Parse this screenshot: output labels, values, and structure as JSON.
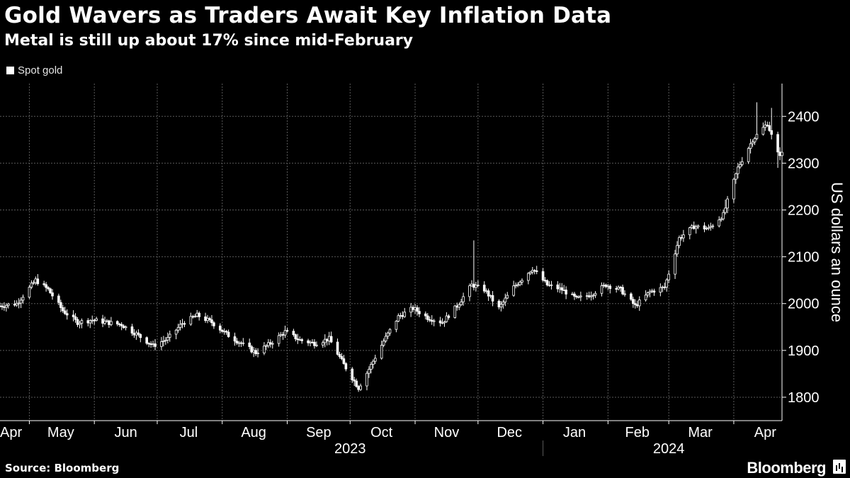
{
  "header": {
    "title": "Gold Wavers as Traders Await Key Inflation Data",
    "subtitle": "Metal is still up about 17% since mid-February"
  },
  "footer": {
    "source": "Source: Bloomberg",
    "brand": "Bloomberg"
  },
  "colors": {
    "background": "#000000",
    "series": "#ffffff",
    "grid": "#5a5a5a"
  },
  "chart_data": {
    "type": "candlestick",
    "title": "Gold Wavers as Traders Await Key Inflation Data",
    "subtitle": "Metal is still up about 17% since mid-February",
    "xlabel": "",
    "ylabel": "US dollars an ounce",
    "ylim": [
      1750,
      2470
    ],
    "xlim": [
      "2023-04-17",
      "2024-04-24"
    ],
    "y_ticks": [
      1800,
      1900,
      2000,
      2100,
      2200,
      2300,
      2400
    ],
    "x_ticks": [
      {
        "label": "Apr",
        "date": "2023-04-20"
      },
      {
        "label": "May",
        "date": "2023-05-16"
      },
      {
        "label": "Jun",
        "date": "2023-06-16"
      },
      {
        "label": "Jul",
        "date": "2023-07-16"
      },
      {
        "label": "Aug",
        "date": "2023-08-16"
      },
      {
        "label": "Sep",
        "date": "2023-09-16"
      },
      {
        "label": "Oct",
        "date": "2023-10-16"
      },
      {
        "label": "Nov",
        "date": "2023-11-16"
      },
      {
        "label": "Dec",
        "date": "2023-12-16"
      },
      {
        "label": "Jan",
        "date": "2024-01-16"
      },
      {
        "label": "Feb",
        "date": "2024-02-15"
      },
      {
        "label": "Mar",
        "date": "2024-03-16"
      },
      {
        "label": "Apr",
        "date": "2024-04-16"
      }
    ],
    "year_labels": [
      {
        "label": "2023",
        "date": "2023-10-01"
      },
      {
        "label": "2024",
        "date": "2024-03-01"
      }
    ],
    "year_divider": "2024-01-01",
    "grid": true,
    "legend": {
      "position": "top-left"
    },
    "series": [
      {
        "name": "Spot gold",
        "key_points": [
          [
            "2023-04-17",
            1995
          ],
          [
            "2023-04-25",
            2000
          ],
          [
            "2023-05-04",
            2050
          ],
          [
            "2023-05-10",
            2030
          ],
          [
            "2023-05-17",
            1985
          ],
          [
            "2023-05-24",
            1960
          ],
          [
            "2023-05-31",
            1965
          ],
          [
            "2023-06-07",
            1960
          ],
          [
            "2023-06-14",
            1955
          ],
          [
            "2023-06-21",
            1935
          ],
          [
            "2023-06-29",
            1910
          ],
          [
            "2023-07-06",
            1925
          ],
          [
            "2023-07-13",
            1958
          ],
          [
            "2023-07-20",
            1975
          ],
          [
            "2023-07-27",
            1960
          ],
          [
            "2023-08-03",
            1935
          ],
          [
            "2023-08-10",
            1915
          ],
          [
            "2023-08-17",
            1895
          ],
          [
            "2023-08-24",
            1915
          ],
          [
            "2023-08-31",
            1940
          ],
          [
            "2023-09-07",
            1922
          ],
          [
            "2023-09-14",
            1915
          ],
          [
            "2023-09-21",
            1925
          ],
          [
            "2023-09-28",
            1870
          ],
          [
            "2023-10-05",
            1820
          ],
          [
            "2023-10-10",
            1860
          ],
          [
            "2023-10-17",
            1920
          ],
          [
            "2023-10-24",
            1972
          ],
          [
            "2023-10-31",
            1990
          ],
          [
            "2023-11-07",
            1970
          ],
          [
            "2023-11-14",
            1960
          ],
          [
            "2023-11-21",
            1995
          ],
          [
            "2023-11-28",
            2040
          ],
          [
            "2023-12-04",
            2030
          ],
          [
            "2023-12-11",
            1990
          ],
          [
            "2023-12-18",
            2035
          ],
          [
            "2023-12-27",
            2075
          ],
          [
            "2024-01-03",
            2040
          ],
          [
            "2024-01-10",
            2030
          ],
          [
            "2024-01-17",
            2010
          ],
          [
            "2024-01-24",
            2020
          ],
          [
            "2024-01-31",
            2040
          ],
          [
            "2024-02-07",
            2030
          ],
          [
            "2024-02-14",
            1995
          ],
          [
            "2024-02-21",
            2025
          ],
          [
            "2024-02-28",
            2035
          ],
          [
            "2024-03-06",
            2140
          ],
          [
            "2024-03-13",
            2165
          ],
          [
            "2024-03-20",
            2160
          ],
          [
            "2024-03-27",
            2190
          ],
          [
            "2024-04-03",
            2290
          ],
          [
            "2024-04-10",
            2350
          ],
          [
            "2024-04-17",
            2385
          ],
          [
            "2024-04-22",
            2320
          ],
          [
            "2024-04-24",
            2320
          ]
        ],
        "spikes": [
          [
            "2023-11-29",
            2135
          ],
          [
            "2024-03-28",
            2222
          ],
          [
            "2024-04-12",
            2430
          ],
          [
            "2024-04-19",
            2418
          ],
          [
            "2024-04-22",
            2290
          ]
        ]
      }
    ]
  }
}
